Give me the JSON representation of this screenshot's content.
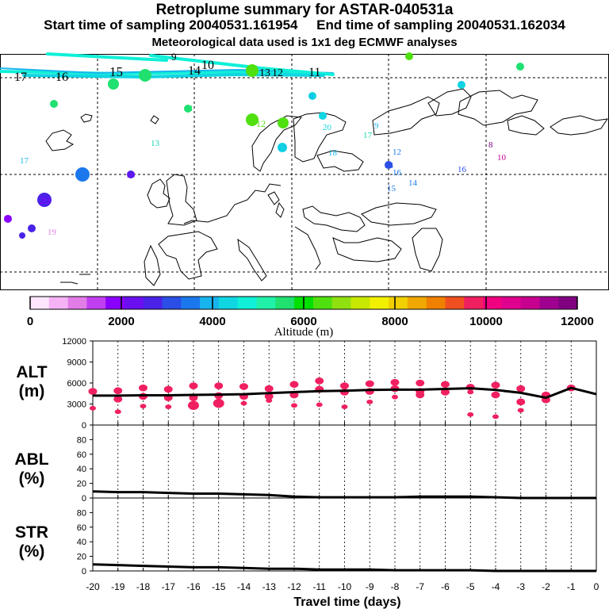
{
  "header": {
    "title": "Retroplume summary for ASTAR-040531a",
    "subtitle": "Start time of sampling 20040531.161954     End time of sampling 20040531.162034",
    "note": "Meteorological data used is 1x1 deg ECMWF analyses"
  },
  "colorbar": {
    "ticks": [
      "0",
      "2000",
      "4000",
      "6000",
      "8000",
      "10000",
      "12000"
    ],
    "label": "Altitude (m)",
    "colors": [
      "#fde6fd",
      "#f5b3f5",
      "#e27de8",
      "#c13ff0",
      "#8a00ff",
      "#6a10f0",
      "#4a22e8",
      "#2a4ee6",
      "#1b78ec",
      "#18b4ee",
      "#10d6e2",
      "#10f0d8",
      "#20f0a8",
      "#20e070",
      "#00e000",
      "#50e010",
      "#90e010",
      "#c8e800",
      "#f0f000",
      "#f0d000",
      "#f0a800",
      "#f08000",
      "#f05020",
      "#f02060",
      "#f00080",
      "#e00090",
      "#c80090",
      "#a00090",
      "#800080"
    ]
  },
  "map": {
    "labels": [
      {
        "t": "17",
        "c": "#000000"
      },
      {
        "t": "16",
        "c": "#000000"
      },
      {
        "t": "15",
        "c": "#000000"
      },
      {
        "t": "14",
        "c": "#000000"
      },
      {
        "t": "10",
        "c": "#000000"
      },
      {
        "t": "13",
        "c": "#000000"
      },
      {
        "t": "12",
        "c": "#000000"
      },
      {
        "t": "11",
        "c": "#000000"
      },
      {
        "t": "9",
        "c": "#000000"
      },
      {
        "t": "10",
        "c": "#20e070"
      },
      {
        "t": "9",
        "c": "#20e070"
      },
      {
        "t": "14",
        "c": "#20e070"
      },
      {
        "t": "13",
        "c": "#10d6b0"
      },
      {
        "t": "17",
        "c": "#18b4ee"
      },
      {
        "t": "15",
        "c": "#1b78ec"
      },
      {
        "t": "16",
        "c": "#8a00ff"
      },
      {
        "t": "20",
        "c": "#8a00ff"
      },
      {
        "t": "18",
        "c": "#8a00ff"
      },
      {
        "t": "19",
        "c": "#e27de8"
      },
      {
        "t": "11",
        "c": "#50e010"
      },
      {
        "t": "12",
        "c": "#50e010"
      },
      {
        "t": "10",
        "c": "#50e010"
      },
      {
        "t": "13",
        "c": "#18b4ee"
      },
      {
        "t": "19",
        "c": "#10d6e2"
      },
      {
        "t": "20",
        "c": "#10d6e2"
      },
      {
        "t": "9",
        "c": "#18b4ee"
      },
      {
        "t": "17",
        "c": "#10d6b0"
      },
      {
        "t": "18",
        "c": "#18b4ee"
      },
      {
        "t": "8",
        "c": "#18b4ee"
      },
      {
        "t": "7",
        "c": "#18b4ee"
      },
      {
        "t": "6",
        "c": "#20e070"
      },
      {
        "t": "6",
        "c": "#50e010"
      },
      {
        "t": "12",
        "c": "#1b78ec"
      },
      {
        "t": "13",
        "c": "#2a4ee6"
      },
      {
        "t": "16",
        "c": "#1b78ec"
      },
      {
        "t": "14",
        "c": "#1b78ec"
      },
      {
        "t": "15",
        "c": "#1b78ec"
      },
      {
        "t": "16",
        "c": "#2a4ee6"
      },
      {
        "t": "8",
        "c": "#800080"
      },
      {
        "t": "10",
        "c": "#c80090"
      }
    ]
  },
  "chart_data": [
    {
      "type": "line",
      "title": "ALT (m)",
      "xlabel": "Travel time (days)",
      "x_ticks": [
        -20,
        -19,
        -18,
        -17,
        -16,
        -15,
        -14,
        -13,
        -12,
        -11,
        -10,
        -9,
        -8,
        -7,
        -6,
        -5,
        -4,
        -3,
        -2,
        -1,
        0
      ],
      "xlim": [
        -20,
        0
      ],
      "ylim": [
        0,
        12000
      ],
      "y_ticks": [
        0,
        3000,
        6000,
        9000,
        12000
      ],
      "x": [
        -20,
        -19,
        -18,
        -17,
        -16,
        -15,
        -14,
        -13,
        -12,
        -11,
        -10,
        -9,
        -8,
        -7,
        -6,
        -5,
        -4,
        -3,
        -2,
        -1,
        0
      ],
      "values": [
        4200,
        4200,
        4250,
        4250,
        4300,
        4350,
        4400,
        4550,
        4700,
        4850,
        4900,
        5000,
        5050,
        5050,
        5150,
        5250,
        5000,
        4600,
        3900,
        5300,
        4400
      ],
      "scatter_color": "#f02060",
      "scatter_points": [
        [
          -20,
          4800,
          2
        ],
        [
          -20,
          2400,
          1
        ],
        [
          -19,
          4900,
          2
        ],
        [
          -19,
          3700,
          2
        ],
        [
          -19,
          1900,
          1
        ],
        [
          -18,
          5300,
          2
        ],
        [
          -18,
          4100,
          2
        ],
        [
          -18,
          2700,
          1
        ],
        [
          -17,
          5100,
          2
        ],
        [
          -17,
          3900,
          2
        ],
        [
          -17,
          2600,
          1
        ],
        [
          -16,
          5600,
          2
        ],
        [
          -16,
          3900,
          2
        ],
        [
          -16,
          2800,
          3
        ],
        [
          -15,
          5600,
          2
        ],
        [
          -15,
          4200,
          2
        ],
        [
          -15,
          3100,
          3
        ],
        [
          -14,
          5500,
          2
        ],
        [
          -14,
          4100,
          2
        ],
        [
          -14,
          3100,
          1
        ],
        [
          -13,
          5200,
          2
        ],
        [
          -13,
          4100,
          2
        ],
        [
          -13,
          3500,
          1
        ],
        [
          -12,
          5800,
          2
        ],
        [
          -12,
          4300,
          2
        ],
        [
          -12,
          2800,
          1
        ],
        [
          -11,
          6300,
          2
        ],
        [
          -11,
          5100,
          2
        ],
        [
          -11,
          2900,
          1
        ],
        [
          -10,
          5600,
          2
        ],
        [
          -10,
          4700,
          2
        ],
        [
          -10,
          2600,
          1
        ],
        [
          -9,
          5900,
          2
        ],
        [
          -9,
          4800,
          2
        ],
        [
          -9,
          3300,
          1
        ],
        [
          -8,
          6100,
          2
        ],
        [
          -8,
          5200,
          2
        ],
        [
          -8,
          4000,
          1
        ],
        [
          -7,
          6000,
          2
        ],
        [
          -7,
          4800,
          2
        ],
        [
          -7,
          4300,
          2
        ],
        [
          -6,
          5800,
          2
        ],
        [
          -6,
          4700,
          2
        ],
        [
          -5,
          5400,
          2
        ],
        [
          -5,
          4700,
          1
        ],
        [
          -5,
          1500,
          1
        ],
        [
          -4,
          5700,
          2
        ],
        [
          -4,
          4300,
          2
        ],
        [
          -4,
          1200,
          1
        ],
        [
          -3,
          5200,
          2
        ],
        [
          -3,
          3300,
          2
        ],
        [
          -3,
          2100,
          1
        ],
        [
          -2,
          4300,
          2
        ],
        [
          -2,
          3600,
          2
        ],
        [
          -1,
          5300,
          2
        ]
      ]
    },
    {
      "type": "line",
      "title": "ABL (%)",
      "xlabel": "Travel time (days)",
      "xlim": [
        -20,
        0
      ],
      "ylim": [
        0,
        100
      ],
      "y_ticks": [
        0,
        20,
        40,
        60,
        80
      ],
      "x": [
        -20,
        -19,
        -18,
        -17,
        -16,
        -15,
        -14,
        -13,
        -12,
        -11,
        -10,
        -9,
        -8,
        -7,
        -6,
        -5,
        -4,
        -3,
        -2,
        -1,
        0
      ],
      "values": [
        9,
        8,
        8,
        7,
        6,
        6,
        5,
        4,
        2,
        1,
        1,
        1,
        1,
        2,
        2,
        2,
        1,
        0,
        0,
        0,
        0
      ]
    },
    {
      "type": "line",
      "title": "STR (%)",
      "xlabel": "Travel time (days)",
      "xlim": [
        -20,
        0
      ],
      "ylim": [
        0,
        100
      ],
      "y_ticks": [
        0,
        20,
        40,
        60,
        80
      ],
      "x": [
        -20,
        -19,
        -18,
        -17,
        -16,
        -15,
        -14,
        -13,
        -12,
        -11,
        -10,
        -9,
        -8,
        -7,
        -6,
        -5,
        -4,
        -3,
        -2,
        -1,
        0
      ],
      "values": [
        9,
        8,
        7,
        6,
        5,
        5,
        4,
        3,
        3,
        2,
        2,
        2,
        1,
        1,
        1,
        1,
        0,
        0,
        0,
        0,
        0
      ]
    }
  ]
}
